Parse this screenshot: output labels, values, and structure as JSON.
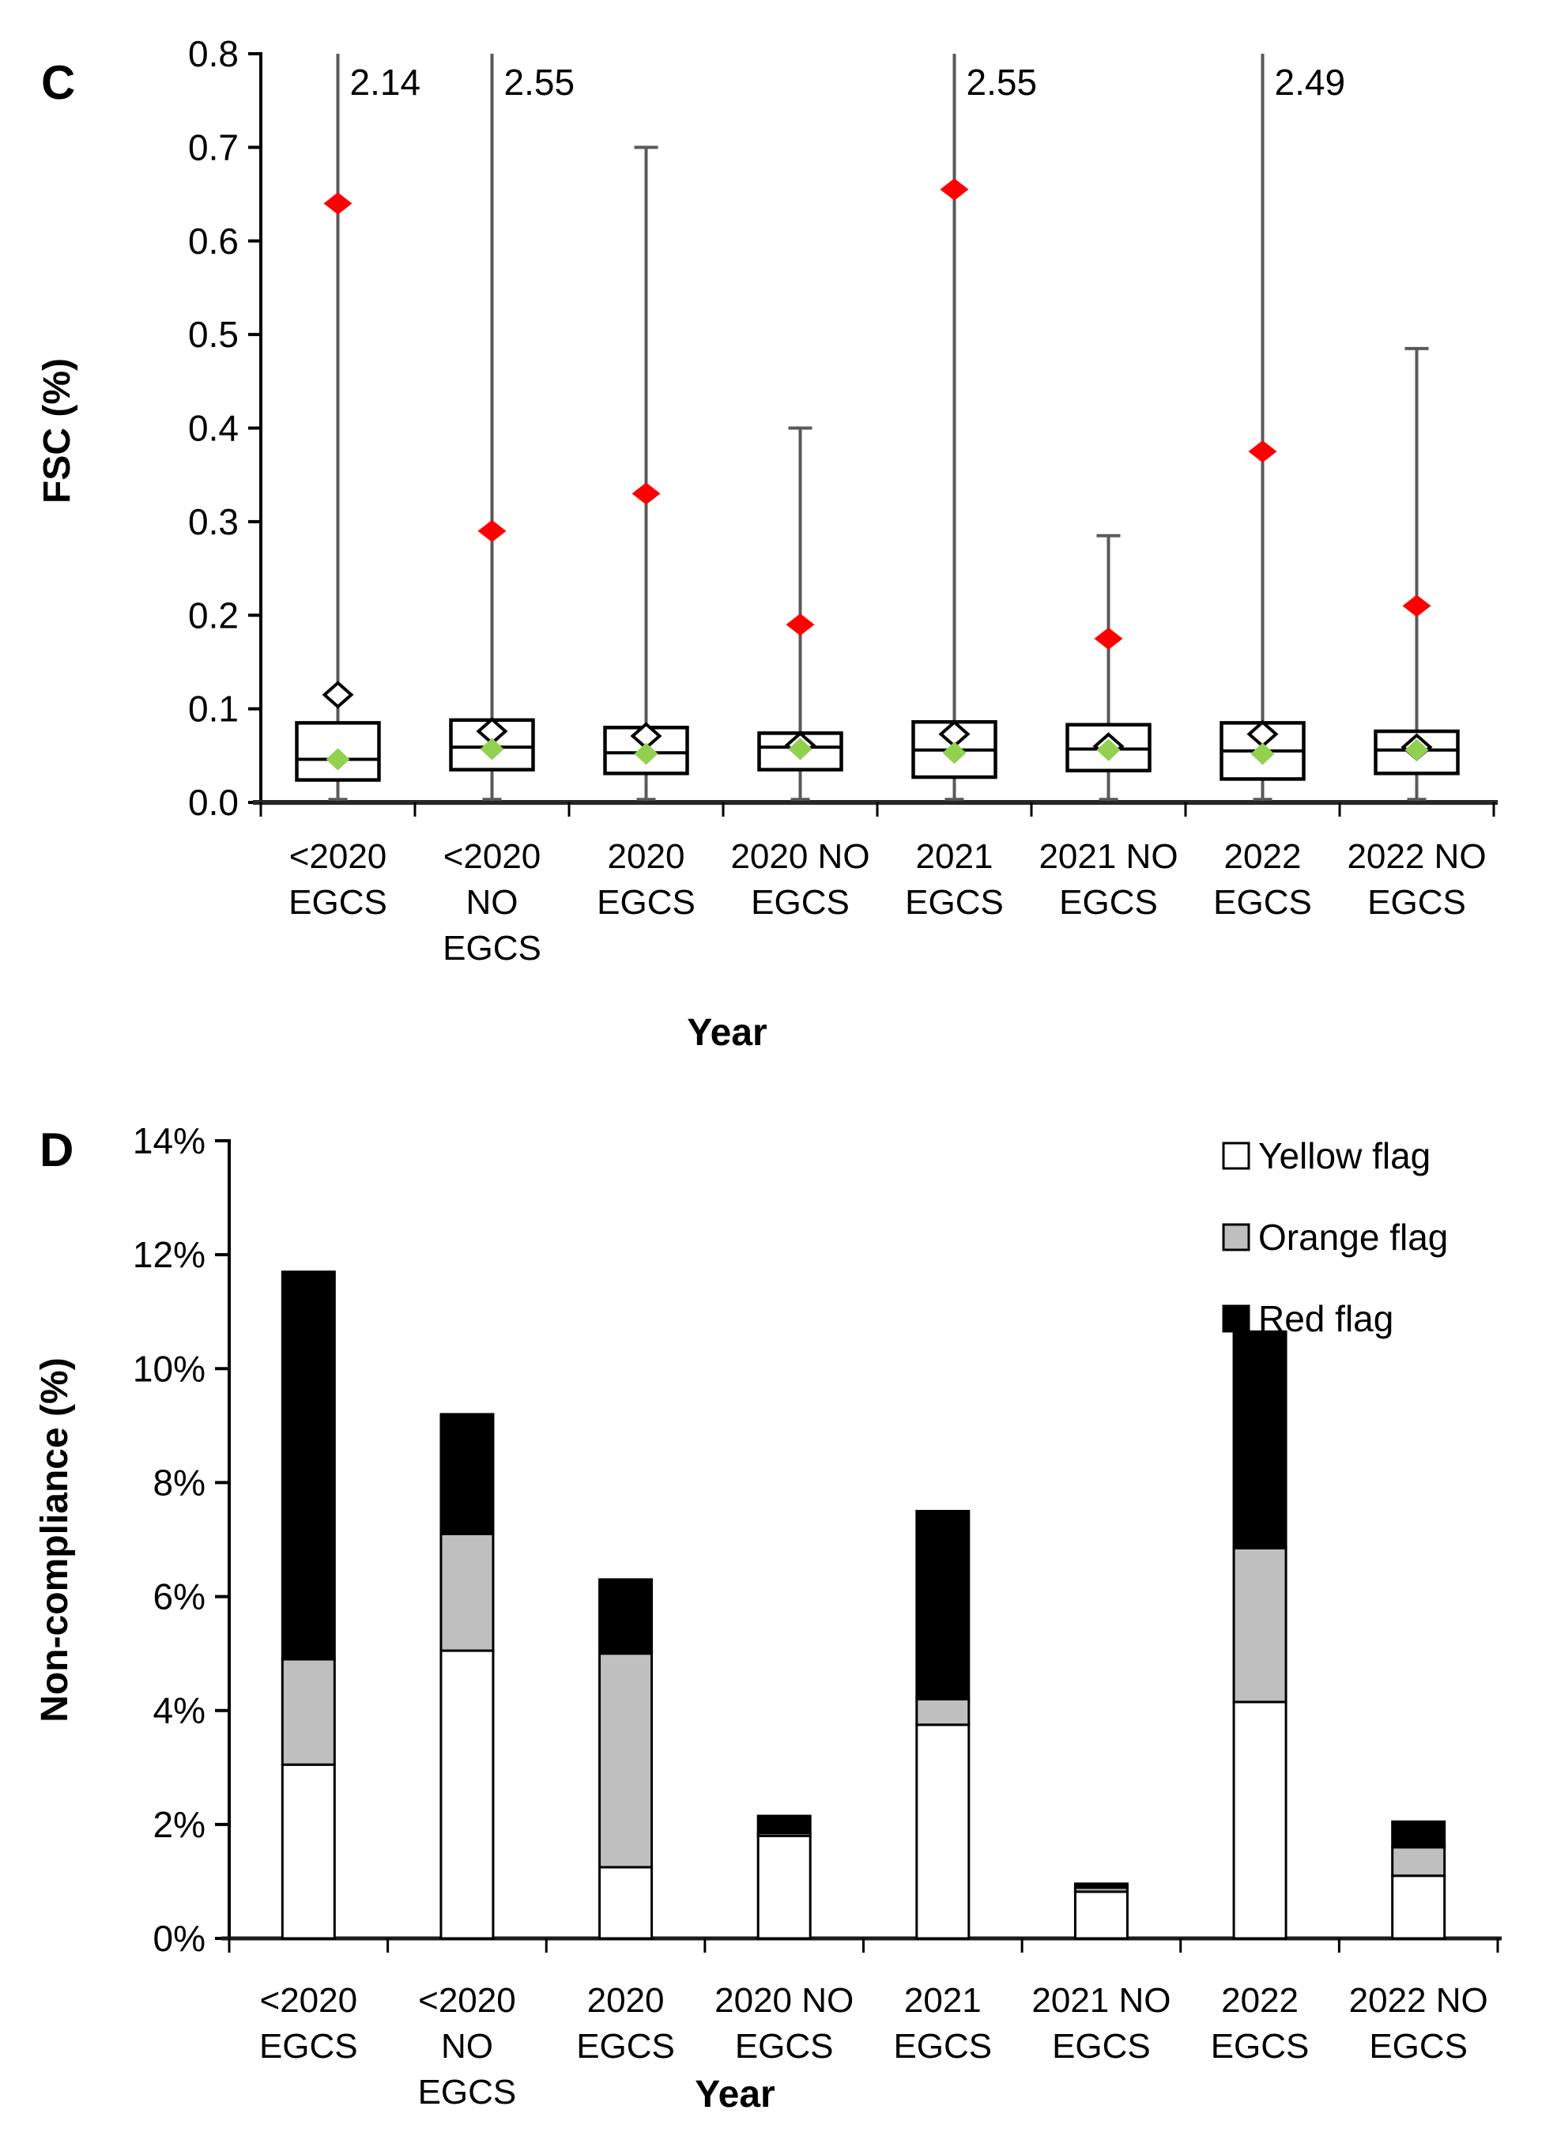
{
  "page": {
    "background": "#ffffff"
  },
  "chart_data": [
    {
      "type": "boxplot",
      "panel_label": "C",
      "xlabel": "Year",
      "ylabel": "FSC (%)",
      "ylim": [
        0.0,
        0.8
      ],
      "ytick_step": 0.1,
      "ytick_labels": [
        "0.0",
        "0.1",
        "0.2",
        "0.3",
        "0.4",
        "0.5",
        "0.6",
        "0.7",
        "0.8"
      ],
      "grid": false,
      "categories": [
        [
          "<2020",
          "EGCS"
        ],
        [
          "<2020",
          "NO",
          "EGCS"
        ],
        [
          "2020",
          "EGCS"
        ],
        [
          "2020 NO",
          "EGCS"
        ],
        [
          "2021",
          "EGCS"
        ],
        [
          "2021 NO",
          "EGCS"
        ],
        [
          "2022",
          "EGCS"
        ],
        [
          "2022 NO",
          "EGCS"
        ]
      ],
      "groups": [
        {
          "category": "<2020 EGCS",
          "whisker_low": 0.0,
          "q1": 0.024,
          "median": 0.046,
          "q3": 0.085,
          "whisker_high": 2.14,
          "clipped": true,
          "max_label": "2.14",
          "red_outlier": 0.64,
          "open_diamond": 0.115,
          "green_diamond": 0.046
        },
        {
          "category": "<2020 NO EGCS",
          "whisker_low": 0.0,
          "q1": 0.035,
          "median": 0.059,
          "q3": 0.088,
          "whisker_high": 2.55,
          "clipped": true,
          "max_label": "2.55",
          "red_outlier": 0.29,
          "open_diamond": 0.076,
          "green_diamond": 0.057
        },
        {
          "category": "2020 EGCS",
          "whisker_low": 0.0,
          "q1": 0.031,
          "median": 0.053,
          "q3": 0.08,
          "whisker_high": 0.7,
          "clipped": false,
          "max_label": "",
          "red_outlier": 0.33,
          "open_diamond": 0.071,
          "green_diamond": 0.052
        },
        {
          "category": "2020 NO EGCS",
          "whisker_low": 0.0,
          "q1": 0.035,
          "median": 0.059,
          "q3": 0.074,
          "whisker_high": 0.4,
          "clipped": false,
          "max_label": "",
          "red_outlier": 0.19,
          "open_diamond": 0.061,
          "green_diamond": 0.057
        },
        {
          "category": "2021 EGCS",
          "whisker_low": 0.0,
          "q1": 0.027,
          "median": 0.056,
          "q3": 0.086,
          "whisker_high": 2.55,
          "clipped": true,
          "max_label": "2.55",
          "red_outlier": 0.655,
          "open_diamond": 0.073,
          "green_diamond": 0.053
        },
        {
          "category": "2021 NO EGCS",
          "whisker_low": 0.0,
          "q1": 0.034,
          "median": 0.057,
          "q3": 0.083,
          "whisker_high": 0.285,
          "clipped": false,
          "max_label": "",
          "red_outlier": 0.175,
          "open_diamond": 0.06,
          "green_diamond": 0.056
        },
        {
          "category": "2022 EGCS",
          "whisker_low": 0.0,
          "q1": 0.025,
          "median": 0.055,
          "q3": 0.085,
          "whisker_high": 2.49,
          "clipped": true,
          "max_label": "2.49",
          "red_outlier": 0.375,
          "open_diamond": 0.073,
          "green_diamond": 0.052
        },
        {
          "category": "2022 NO EGCS",
          "whisker_low": 0.0,
          "q1": 0.031,
          "median": 0.056,
          "q3": 0.076,
          "whisker_high": 0.485,
          "clipped": false,
          "max_label": "",
          "red_outlier": 0.21,
          "open_diamond": 0.059,
          "green_diamond": 0.056
        }
      ],
      "colors": {
        "red_outlier": "#FF0000",
        "green_diamond": "#92D050",
        "open_diamond_stroke": "#000000",
        "whisker": "#595959",
        "box_stroke": "#000000",
        "box_fill": "#FFFFFF",
        "axis": "#000000"
      }
    },
    {
      "type": "bar",
      "stacked": true,
      "panel_label": "D",
      "xlabel": "Year",
      "ylabel": "Non-compliance (%)",
      "ylim": [
        0,
        14
      ],
      "ytick_step": 2,
      "ytick_labels": [
        "0%",
        "2%",
        "4%",
        "6%",
        "8%",
        "10%",
        "12%",
        "14%"
      ],
      "grid": false,
      "legend_position": "top-right",
      "categories": [
        [
          "<2020",
          "EGCS"
        ],
        [
          "<2020",
          "NO",
          "EGCS"
        ],
        [
          "2020",
          "EGCS"
        ],
        [
          "2020 NO",
          "EGCS"
        ],
        [
          "2021",
          "EGCS"
        ],
        [
          "2021 NO",
          "EGCS"
        ],
        [
          "2022",
          "EGCS"
        ],
        [
          "2022 NO",
          "EGCS"
        ]
      ],
      "series": [
        {
          "name": "Yellow flag",
          "color": "#FFFFFF",
          "values": [
            3.05,
            5.05,
            1.25,
            1.8,
            3.75,
            0.82,
            4.15,
            1.1
          ]
        },
        {
          "name": "Orange flag",
          "color": "#BFBFBF",
          "values": [
            1.85,
            2.05,
            3.75,
            0.05,
            0.45,
            0.07,
            2.7,
            0.5
          ]
        },
        {
          "name": "Red flag",
          "color": "#000000",
          "values": [
            6.8,
            2.1,
            1.3,
            0.3,
            3.3,
            0.07,
            3.8,
            0.45
          ]
        }
      ],
      "totals": [
        11.7,
        9.2,
        6.3,
        2.15,
        7.5,
        0.96,
        10.65,
        2.05
      ]
    }
  ]
}
